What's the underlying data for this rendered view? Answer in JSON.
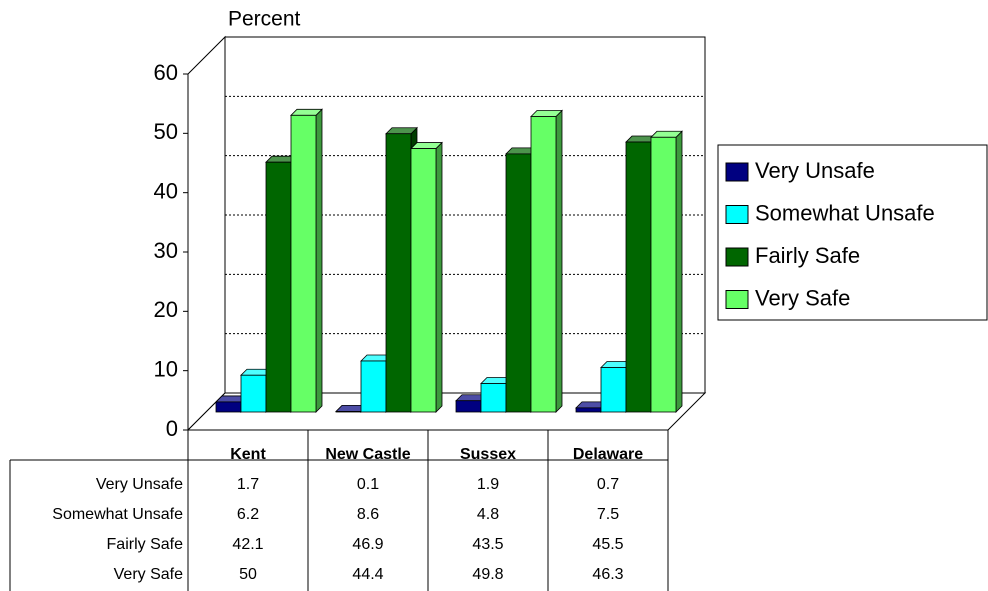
{
  "chart_data": {
    "type": "bar3d",
    "y_axis_label": "Percent",
    "categories": [
      "Kent",
      "New Castle",
      "Sussex",
      "Delaware"
    ],
    "series": [
      {
        "name": "Very Unsafe",
        "color": "#000080",
        "values": [
          1.7,
          0.1,
          1.9,
          0.7
        ]
      },
      {
        "name": "Somewhat Unsafe",
        "color": "#00ffff",
        "values": [
          6.2,
          8.6,
          4.8,
          7.5
        ]
      },
      {
        "name": "Fairly Safe",
        "color": "#006600",
        "values": [
          42.1,
          46.9,
          43.5,
          45.5
        ]
      },
      {
        "name": "Very Safe",
        "color": "#66ff66",
        "values": [
          50,
          44.4,
          49.8,
          46.3
        ]
      }
    ],
    "ylim": [
      0,
      60
    ],
    "yticks": [
      0,
      10,
      20,
      30,
      40,
      50,
      60
    ],
    "grid": true,
    "legend": "right",
    "data_table": true
  }
}
